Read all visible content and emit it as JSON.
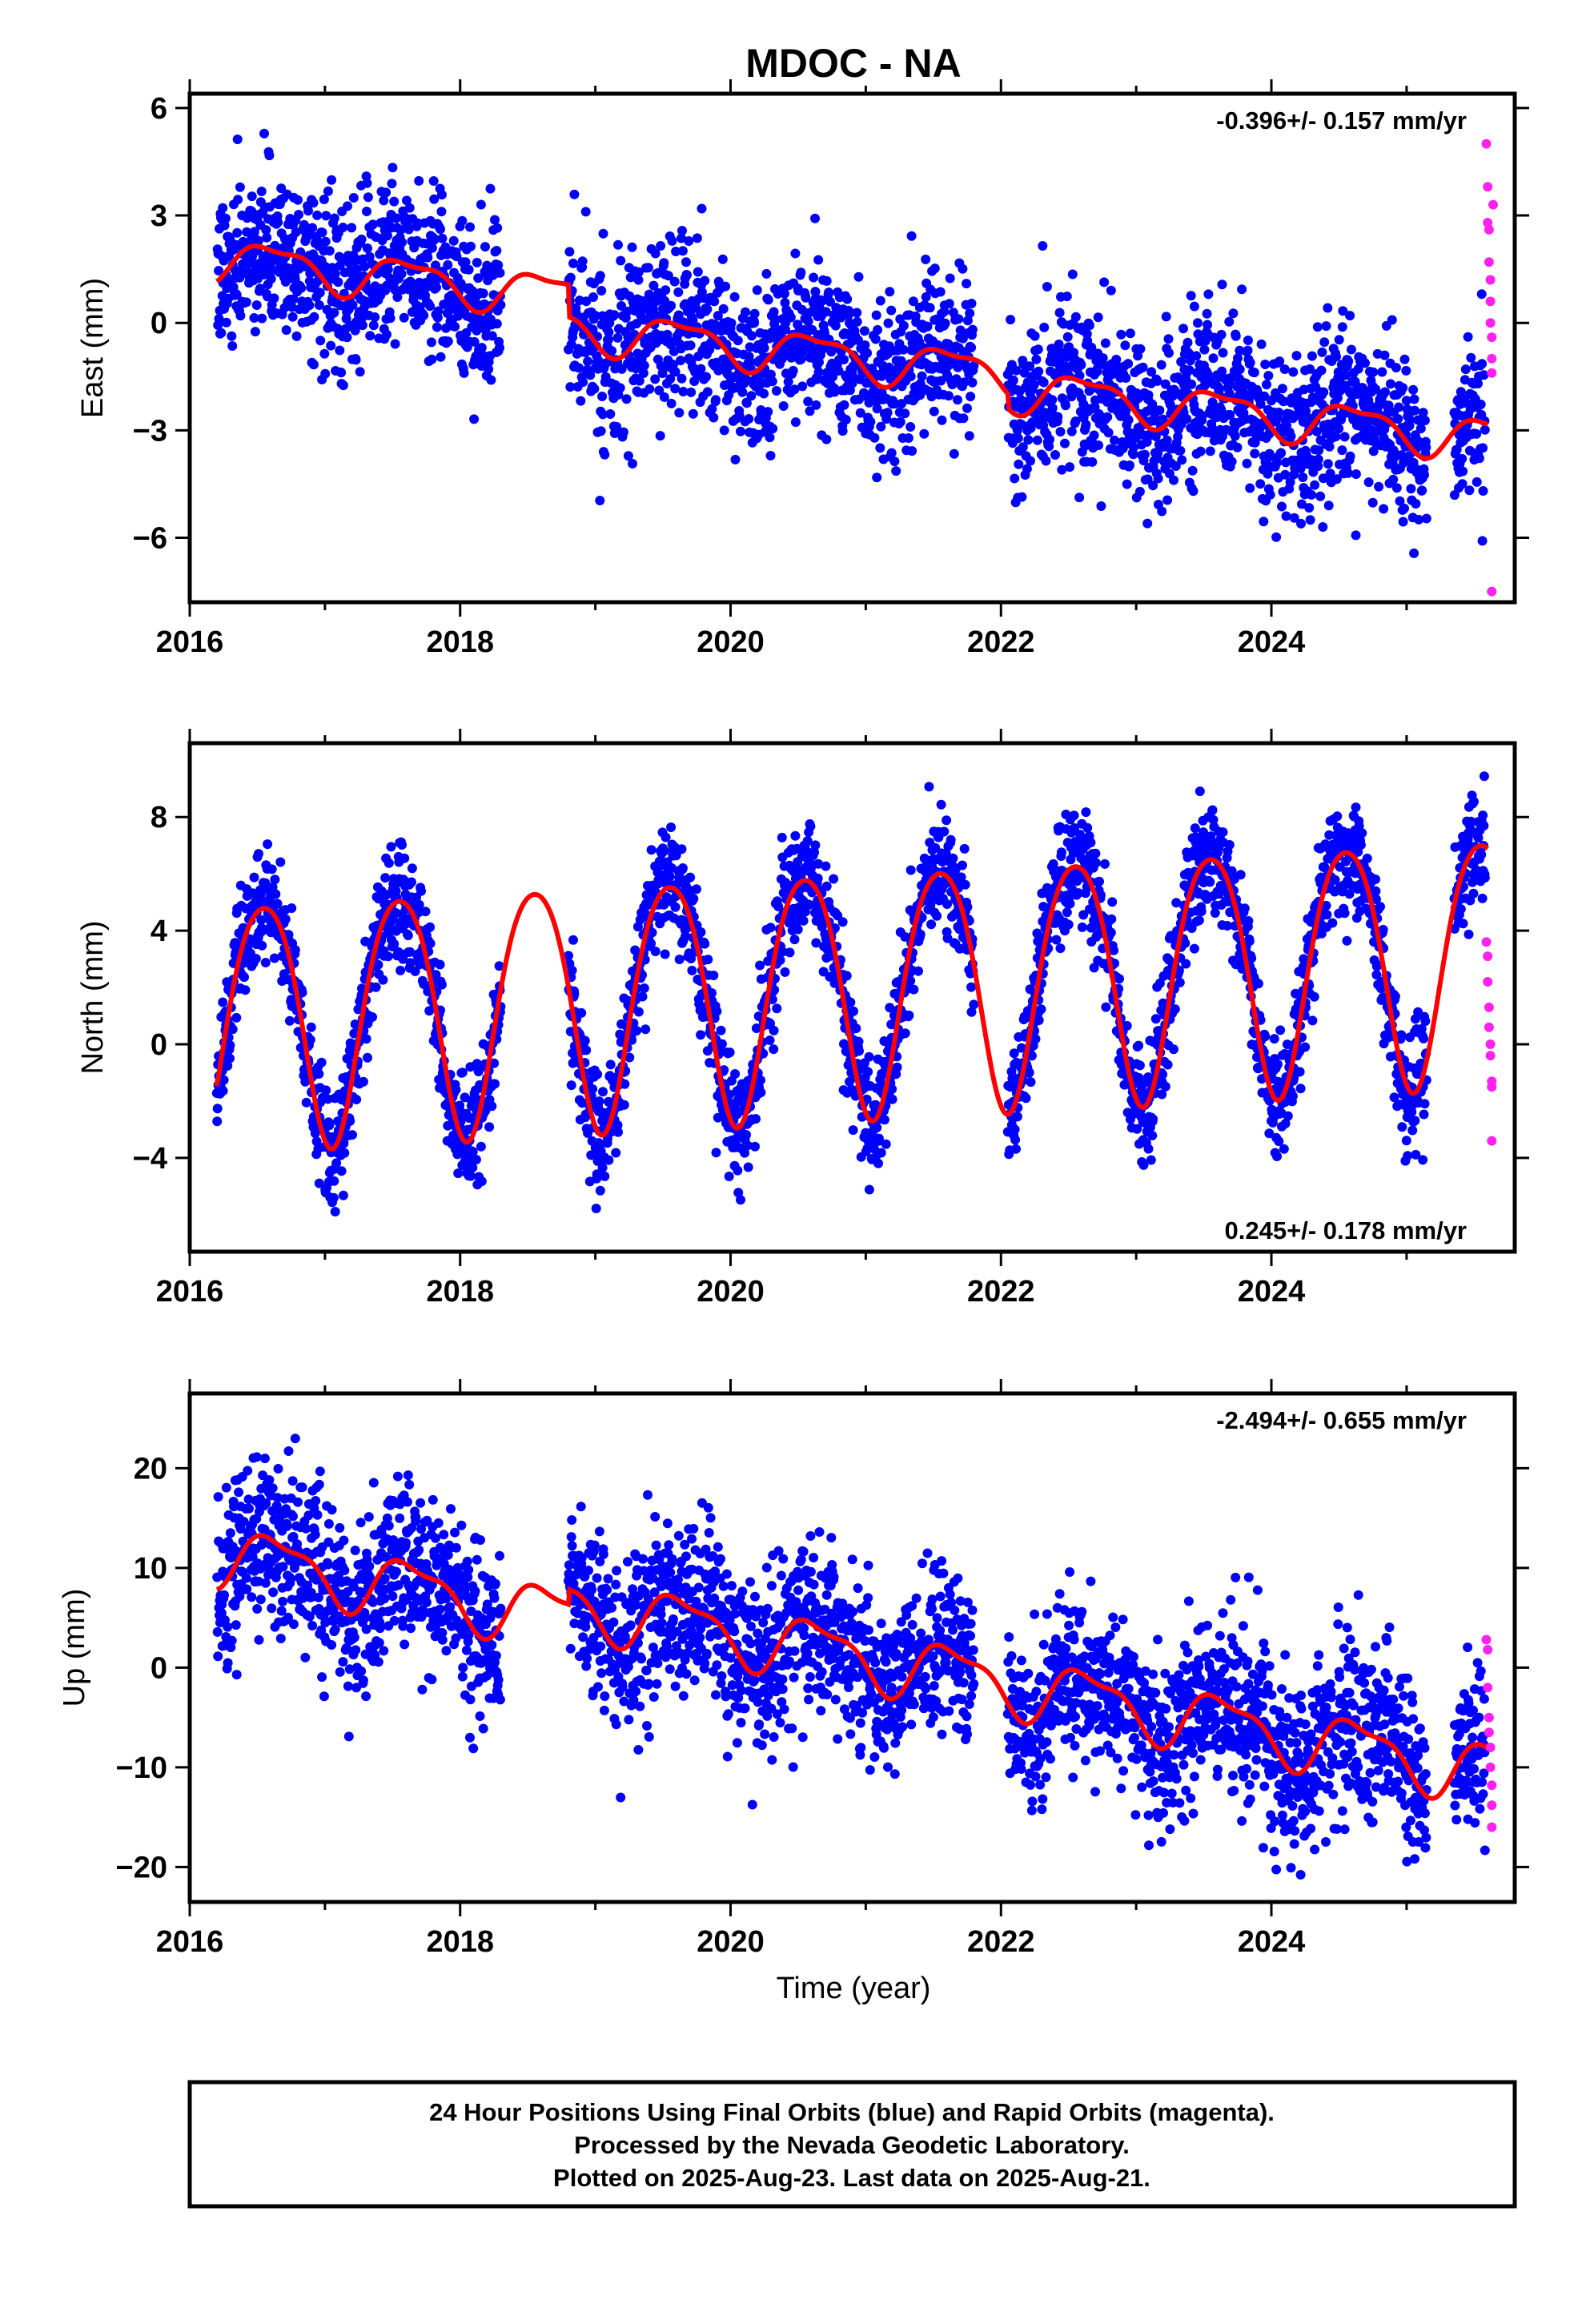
{
  "title": "MDOC - NA",
  "xlabel": "Time (year)",
  "colors": {
    "final": "#0000ff",
    "rapid": "#ff22ee",
    "model": "#ff0000",
    "axis": "#000000"
  },
  "footer": {
    "line1": "24 Hour Positions Using Final Orbits (blue) and Rapid Orbits (magenta).",
    "line2": "Processed by the Nevada Geodetic Laboratory.",
    "line3": "Plotted on 2025-Aug-23. Last data on 2025-Aug-21."
  },
  "chart_data": [
    {
      "type": "scatter",
      "ylabel": "East (mm)",
      "rate": "-0.396+/- 0.157 mm/yr",
      "rate_position": "top-right",
      "xlim": [
        2016.0,
        2025.8
      ],
      "ylim": [
        -7.8,
        6.4
      ],
      "x_ticks": [
        2016,
        2018,
        2020,
        2022,
        2024
      ],
      "y_ticks": [
        -6,
        -3,
        0,
        3,
        6
      ],
      "y_tick_labels": [
        "−6",
        "−3",
        "0",
        "3",
        "6"
      ],
      "grid": false,
      "data_gaps": [
        [
          2018.3,
          2018.8
        ],
        [
          2021.8,
          2022.05
        ],
        [
          2025.15,
          2025.35
        ]
      ],
      "model": {
        "offset": 1.8,
        "t0": 2016.2,
        "slope": -0.396,
        "annual_amp": 0.55,
        "annual_phase": 2016.62,
        "semiannual_amp": 0.2,
        "semiannual_phase": 2016.4,
        "steps": [
          {
            "t": 2018.8,
            "dy": -0.9
          },
          {
            "t": 2022.05,
            "dy": -0.4
          }
        ]
      },
      "scatter_sigma": 1.1,
      "rapid_points": {
        "x": [
          2025.59,
          2025.6,
          2025.6,
          2025.61,
          2025.61,
          2025.62,
          2025.62,
          2025.62,
          2025.63,
          2025.63,
          2025.63,
          2025.63,
          2025.64
        ],
        "y": [
          5.0,
          3.8,
          2.8,
          2.6,
          1.7,
          1.2,
          0.6,
          0.0,
          -0.4,
          -1.0,
          -1.4,
          -7.5,
          3.3
        ]
      }
    },
    {
      "type": "scatter",
      "ylabel": "North (mm)",
      "rate": "0.245+/- 0.178 mm/yr",
      "rate_position": "bottom-right",
      "xlim": [
        2016.0,
        2025.8
      ],
      "ylim": [
        -7.3,
        10.6
      ],
      "x_ticks": [
        2016,
        2018,
        2020,
        2022,
        2024
      ],
      "y_ticks": [
        -4,
        0,
        4,
        8
      ],
      "y_tick_labels": [
        "−4",
        "0",
        "4",
        "8"
      ],
      "grid": false,
      "data_gaps": [
        [
          2018.3,
          2018.8
        ],
        [
          2021.8,
          2022.05
        ],
        [
          2025.15,
          2025.35
        ]
      ],
      "model": {
        "offset": 0.9,
        "t0": 2016.2,
        "slope": 0.245,
        "annual_amp": 4.3,
        "annual_phase": 2016.55,
        "semiannual_amp": 0.5,
        "semiannual_phase": 2016.3,
        "steps": []
      },
      "scatter_sigma": 1.0,
      "rapid_points": {
        "x": [
          2025.59,
          2025.6,
          2025.6,
          2025.61,
          2025.61,
          2025.62,
          2025.62,
          2025.63,
          2025.63,
          2025.63
        ],
        "y": [
          3.6,
          3.1,
          2.2,
          1.3,
          0.6,
          0.0,
          -0.4,
          -1.3,
          -1.5,
          -3.4
        ]
      }
    },
    {
      "type": "scatter",
      "ylabel": "Up (mm)",
      "rate": "-2.494+/- 0.655 mm/yr",
      "rate_position": "top-right",
      "xlim": [
        2016.0,
        2025.8
      ],
      "ylim": [
        -23.5,
        27.5
      ],
      "x_ticks": [
        2016,
        2018,
        2020,
        2022,
        2024
      ],
      "y_ticks": [
        -20,
        -10,
        0,
        10,
        20
      ],
      "y_tick_labels": [
        "−20",
        "−10",
        "0",
        "10",
        "20"
      ],
      "grid": false,
      "data_gaps": [
        [
          2018.3,
          2018.8
        ],
        [
          2021.8,
          2022.05
        ],
        [
          2025.15,
          2025.35
        ]
      ],
      "model": {
        "offset": 11.5,
        "t0": 2016.2,
        "slope": -2.494,
        "annual_amp": 2.8,
        "annual_phase": 2016.65,
        "semiannual_amp": 1.0,
        "semiannual_phase": 2016.45,
        "steps": [
          {
            "t": 2018.8,
            "dy": 1.5
          }
        ]
      },
      "scatter_sigma": 4.2,
      "rapid_points": {
        "x": [
          2025.59,
          2025.6,
          2025.6,
          2025.61,
          2025.61,
          2025.62,
          2025.62,
          2025.63,
          2025.63,
          2025.63
        ],
        "y": [
          2.8,
          1.8,
          -2.0,
          -5.0,
          -6.5,
          -8.0,
          -10.0,
          -11.8,
          -13.8,
          -16.0
        ]
      }
    }
  ]
}
